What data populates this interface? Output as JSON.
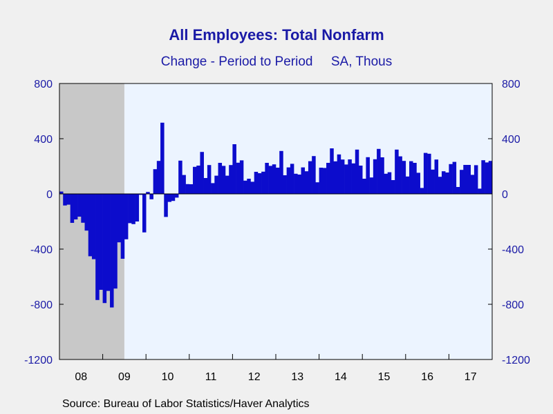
{
  "chart_data": {
    "type": "bar",
    "title": "All Employees: Total Nonfarm",
    "subtitle": "Change - Period to Period",
    "units": "SA, Thous",
    "source": "Source:  Bureau of Labor Statistics/Haver Analytics",
    "ylim": [
      -1200,
      800
    ],
    "yticks": [
      800,
      400,
      0,
      -400,
      -800,
      -1200
    ],
    "x_tick_labels": [
      "08",
      "09",
      "10",
      "11",
      "12",
      "13",
      "14",
      "15",
      "16",
      "17"
    ],
    "recession_shading": {
      "start": "2008-01",
      "end": "2009-06"
    },
    "start_month": "2008-01",
    "values": [
      17,
      -84,
      -78,
      -210,
      -185,
      -165,
      -209,
      -266,
      -452,
      -473,
      -769,
      -695,
      -791,
      -703,
      -823,
      -686,
      -351,
      -470,
      -329,
      -212,
      -219,
      -200,
      -7,
      -279,
      14,
      -39,
      179,
      239,
      516,
      -167,
      -58,
      -51,
      -27,
      241,
      137,
      71,
      70,
      196,
      205,
      304,
      115,
      209,
      78,
      132,
      225,
      203,
      132,
      209,
      360,
      226,
      243,
      96,
      110,
      88,
      160,
      150,
      161,
      225,
      203,
      214,
      190,
      311,
      135,
      192,
      218,
      146,
      140,
      192,
      164,
      237,
      274,
      84,
      190,
      188,
      225,
      330,
      236,
      286,
      249,
      213,
      250,
      221,
      321,
      205,
      110,
      266,
      119,
      251,
      326,
      265,
      146,
      157,
      100,
      321,
      272,
      239,
      126,
      237,
      225,
      153,
      43,
      297,
      291,
      176,
      249,
      124,
      164,
      155,
      216,
      232,
      50,
      174,
      210,
      210,
      138,
      208,
      38,
      244,
      228,
      239
    ],
    "bar_color": "#0c0ccc",
    "shade_color": "#c8c8c8",
    "plot_bg": "#ecf4ff"
  }
}
